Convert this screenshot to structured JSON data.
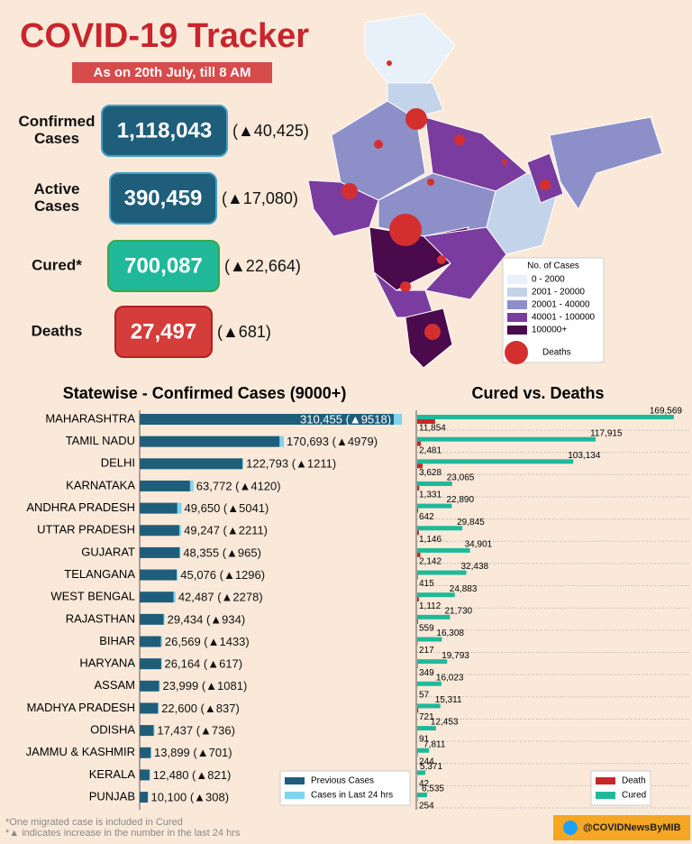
{
  "header": {
    "title": "COVID-19 Tracker",
    "subtitle": "As on 20th July, till 8 AM"
  },
  "summary": [
    {
      "label_lines": [
        "Confirmed",
        "Cases"
      ],
      "value": "1,118,043",
      "change": "(▲40,425)",
      "color": "#1f5e7a"
    },
    {
      "label_lines": [
        "Active",
        "Cases"
      ],
      "value": "390,459",
      "change": "(▲17,080)",
      "color": "#1f5e7a"
    },
    {
      "label_lines": [
        "Cured*"
      ],
      "value": "700,087",
      "change": "(▲22,664)",
      "color": "#1fb99a"
    },
    {
      "label_lines": [
        "Deaths"
      ],
      "value": "27,497",
      "change": "(▲681)",
      "color": "#d43d3a"
    }
  ],
  "map": {
    "legend_title": "No. of Cases",
    "legend": [
      {
        "label": "0 - 2000",
        "color": "#e8f0fa"
      },
      {
        "label": "2001 - 20000",
        "color": "#c3d3ea"
      },
      {
        "label": "20001 - 40000",
        "color": "#8d8fc9"
      },
      {
        "label": "40001 - 100000",
        "color": "#7b3c9f"
      },
      {
        "label": "100000+",
        "color": "#4a0a4c"
      }
    ],
    "deaths_label": "Deaths"
  },
  "chart_data": [
    {
      "type": "bar",
      "orientation": "horizontal",
      "stacked": true,
      "title": "Statewise - Confirmed Cases (9000+)",
      "categories": [
        "MAHARASHTRA",
        "TAMIL NADU",
        "DELHI",
        "KARNATAKA",
        "ANDHRA PRADESH",
        "UTTAR PRADESH",
        "GUJARAT",
        "TELANGANA",
        "WEST BENGAL",
        "RAJASTHAN",
        "BIHAR",
        "HARYANA",
        "ASSAM",
        "MADHYA PRADESH",
        "ODISHA",
        "JAMMU & KASHMIR",
        "KERALA",
        "PUNJAB"
      ],
      "series": [
        {
          "name": "Previous Cases",
          "color": "#1f5e7a",
          "values": [
            300937,
            165714,
            121582,
            59652,
            44609,
            47036,
            47390,
            43780,
            40209,
            28500,
            25136,
            25547,
            22918,
            21763,
            16701,
            13198,
            11659,
            9792
          ]
        },
        {
          "name": "Cases in Last 24 hrs",
          "color": "#7fd4f0",
          "values": [
            9518,
            4979,
            1211,
            4120,
            5041,
            2211,
            965,
            1296,
            2278,
            934,
            1433,
            617,
            1081,
            837,
            736,
            701,
            821,
            308
          ]
        }
      ],
      "bar_labels": [
        "310,455 (▲9518)",
        "170,693 (▲4979)",
        "122,793 (▲1211)",
        "63,772 (▲4120)",
        "49,650 (▲5041)",
        "49,247 (▲2211)",
        "48,355 (▲965)",
        "45,076 (▲1296)",
        "42,487 (▲2278)",
        "29,434 (▲934)",
        "26,569 (▲1433)",
        "26,164 (▲617)",
        "23,999 (▲1081)",
        "22,600 (▲837)",
        "17,437 (▲736)",
        "13,899 (▲701)",
        "12,480 (▲821)",
        "10,100 (▲308)"
      ],
      "xlim": [
        0,
        320000
      ],
      "legend": "lower right"
    },
    {
      "type": "bar",
      "orientation": "horizontal",
      "stacked": false,
      "title": "Cured vs. Deaths",
      "categories": [
        "MAHARASHTRA",
        "TAMIL NADU",
        "DELHI",
        "KARNATAKA",
        "ANDHRA PRADESH",
        "UTTAR PRADESH",
        "GUJARAT",
        "TELANGANA",
        "WEST BENGAL",
        "RAJASTHAN",
        "BIHAR",
        "HARYANA",
        "ASSAM",
        "MADHYA PRADESH",
        "ODISHA",
        "JAMMU & KASHMIR",
        "KERALA",
        "PUNJAB"
      ],
      "series": [
        {
          "name": "Cured",
          "color": "#1fb99a",
          "values": [
            169569,
            117915,
            103134,
            23065,
            22890,
            29845,
            34901,
            32438,
            24883,
            21730,
            16308,
            19793,
            16023,
            15311,
            12453,
            7811,
            5371,
            6535
          ],
          "value_labels": [
            "169,569",
            "117,915",
            "103,134",
            "23,065",
            "22,890",
            "29,845",
            "34,901",
            "32,438",
            "24,883",
            "21,730",
            "16,308",
            "19,793",
            "16,023",
            "15,311",
            "12,453",
            "7,811",
            "5,371",
            "6,535"
          ]
        },
        {
          "name": "Death",
          "color": "#c62828",
          "values": [
            11854,
            2481,
            3628,
            1331,
            642,
            1146,
            2142,
            415,
            1112,
            559,
            217,
            349,
            57,
            721,
            91,
            244,
            42,
            254
          ],
          "value_labels": [
            "11,854",
            "2,481",
            "3,628",
            "1,331",
            "642",
            "1,146",
            "2,142",
            "415",
            "1,112",
            "559",
            "217",
            "349",
            "57",
            "721",
            "91",
            "244",
            "42",
            "254"
          ]
        }
      ],
      "xlim": [
        0,
        175000
      ],
      "legend": "lower right"
    }
  ],
  "footer": {
    "notes": [
      "*One migrated case is included in Cured",
      "*▲ indicates increase in the number in the last 24 hrs"
    ],
    "handle": "@COVIDNewsByMIB"
  }
}
